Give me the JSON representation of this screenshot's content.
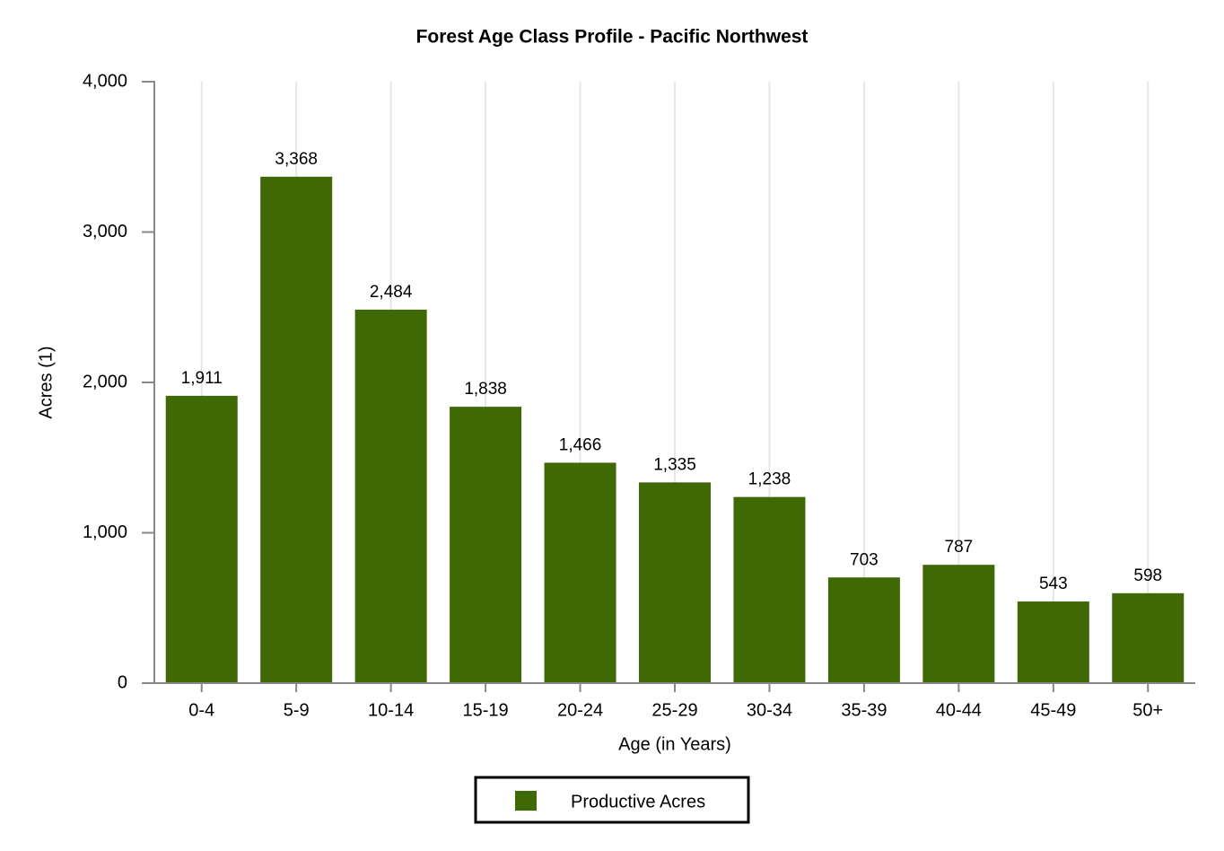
{
  "chart_data": {
    "type": "bar",
    "title": "Forest Age Class Profile - Pacific Northwest",
    "x_label": "Age (in Years)",
    "y_label": "Acres (1)",
    "categories": [
      "0-4",
      "5-9",
      "10-14",
      "15-19",
      "20-24",
      "25-29",
      "30-34",
      "35-39",
      "40-44",
      "45-49",
      "50+"
    ],
    "series": [
      {
        "name": "Productive Acres",
        "color": "#3e6904",
        "values": [
          1911,
          3368,
          2484,
          1838,
          1466,
          1335,
          1238,
          703,
          787,
          543,
          598
        ],
        "value_labels": [
          "1,911",
          "3,368",
          "2,484",
          "1,838",
          "1,466",
          "1,335",
          "1,238",
          "703",
          "787",
          "543",
          "598"
        ]
      }
    ],
    "ylim": [
      0,
      4000
    ],
    "yticks": [
      0,
      {
        "value": 1000,
        "label": "1,000"
      },
      {
        "value": 2000,
        "label": "2,000"
      },
      {
        "value": 3000,
        "label": "3,000"
      },
      {
        "value": 4000,
        "label": "4,000"
      }
    ],
    "grid": true,
    "legend": "bottom"
  }
}
